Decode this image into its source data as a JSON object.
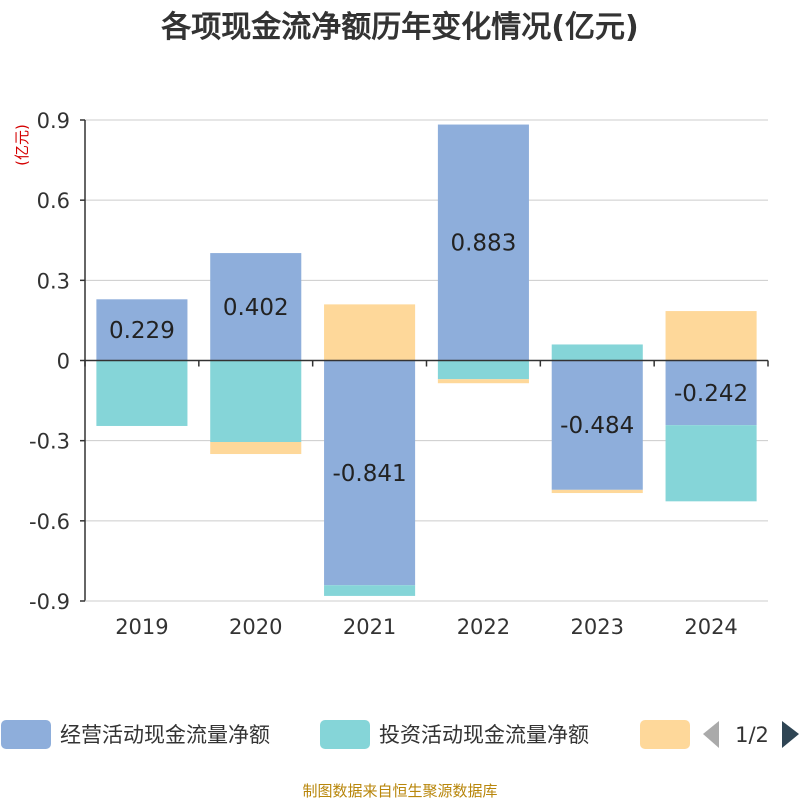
{
  "title": "各项现金流净额历年变化情况(亿元)",
  "unit_label": "(亿元)",
  "source": "制图数据来自恒生聚源数据库",
  "legend_page": "1/2",
  "colors": {
    "operating": "#8eaedb",
    "investing": "#85d5d8",
    "financing": "#fed89a"
  },
  "chart_data": {
    "type": "bar",
    "stacked": true,
    "categories": [
      "2019",
      "2020",
      "2021",
      "2022",
      "2023",
      "2024"
    ],
    "ylim": [
      -0.9,
      0.9
    ],
    "yticks": [
      0.9,
      0.6,
      0.3,
      0,
      -0.3,
      -0.6,
      -0.9
    ],
    "ytick_labels": [
      "0.9",
      "0.6",
      "0.3",
      "0",
      "-0.3",
      "-0.6",
      "-0.9"
    ],
    "series": [
      {
        "name": "经营活动现金流量净额",
        "color_key": "operating",
        "values": [
          0.229,
          0.402,
          -0.841,
          0.883,
          -0.484,
          -0.242
        ],
        "labels": [
          "0.229",
          "0.402",
          "-0.841",
          "0.883",
          "-0.484",
          "-0.242"
        ]
      },
      {
        "name": "投资活动现金流量净额",
        "color_key": "investing",
        "values": [
          -0.245,
          -0.305,
          -0.04,
          -0.07,
          0.06,
          -0.285
        ]
      },
      {
        "color_key": "financing",
        "values": [
          0,
          -0.045,
          0.21,
          -0.015,
          -0.012,
          0.185
        ]
      }
    ],
    "legend_position": "bottom"
  }
}
